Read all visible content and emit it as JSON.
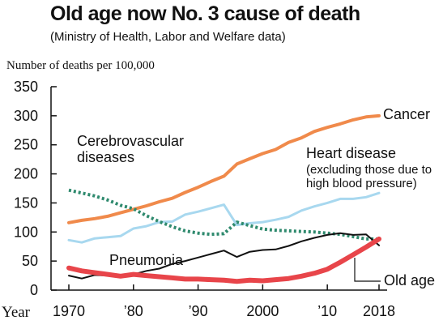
{
  "chart_data": {
    "type": "line",
    "title": "Old age now No. 3 cause of death",
    "subtitle": "(Ministry of Health, Labor and Welfare data)",
    "y_label": "Number of deaths per 100,000",
    "x_label": "Year",
    "xlim": [
      1970,
      2018
    ],
    "xticks": [
      1970,
      {
        "value": 1980,
        "label": "’80"
      },
      {
        "value": 1990,
        "label": "’90"
      },
      2000,
      {
        "value": 2010,
        "label": "’10"
      },
      2018
    ],
    "ylim": [
      0,
      350
    ],
    "yticks": [
      0,
      50,
      100,
      150,
      200,
      250,
      300,
      350
    ],
    "x": [
      1970,
      1972,
      1974,
      1976,
      1978,
      1980,
      1982,
      1984,
      1986,
      1988,
      1990,
      1992,
      1994,
      1996,
      1998,
      2000,
      2002,
      2004,
      2006,
      2008,
      2010,
      2012,
      2014,
      2016,
      2018
    ],
    "series": [
      {
        "name": "Cancer",
        "color": "#f08a4b",
        "values": [
          116,
          120,
          123,
          127,
          133,
          139,
          145,
          152,
          158,
          168,
          177,
          187,
          196,
          217,
          226,
          235,
          242,
          254,
          262,
          273,
          280,
          286,
          293,
          298,
          300
        ]
      },
      {
        "name": "Heart disease",
        "note": "(excluding those due to high blood pressure)",
        "color": "#a8d8ef",
        "values": [
          86,
          82,
          89,
          91,
          93,
          106,
          110,
          117,
          118,
          130,
          135,
          141,
          147,
          112,
          115,
          117,
          121,
          126,
          137,
          144,
          150,
          157,
          157,
          160,
          167
        ]
      },
      {
        "name": "Cerebrovascular diseases",
        "color": "#2f8a6e",
        "linestyle": "dotted",
        "values": [
          172,
          167,
          162,
          155,
          146,
          140,
          128,
          118,
          109,
          102,
          98,
          96,
          97,
          117,
          111,
          105,
          103,
          102,
          101,
          100,
          98,
          96,
          92,
          88,
          88
        ]
      },
      {
        "name": "Pneumonia",
        "color": "#111111",
        "values": [
          25,
          20,
          26,
          25,
          25,
          27,
          33,
          37,
          45,
          50,
          56,
          62,
          68,
          57,
          66,
          69,
          70,
          76,
          84,
          90,
          95,
          98,
          95,
          96,
          77
        ]
      },
      {
        "name": "Old age",
        "color": "#e8454a",
        "values": [
          38,
          33,
          30,
          27,
          24,
          27,
          25,
          23,
          21,
          19,
          19,
          18,
          17,
          15,
          17,
          16,
          18,
          20,
          24,
          29,
          36,
          48,
          61,
          74,
          88
        ]
      }
    ]
  }
}
